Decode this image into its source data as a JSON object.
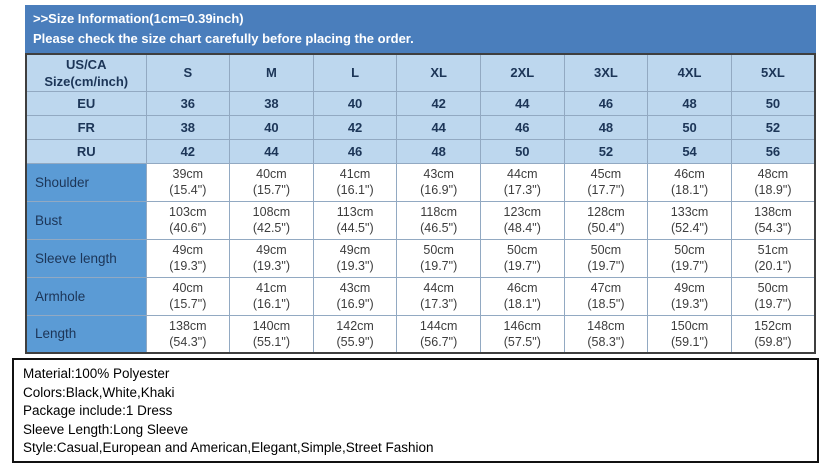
{
  "banner": {
    "title": ">>Size Information(1cm=0.39inch)",
    "subtitle": "Please check the size chart carefully before placing the order."
  },
  "size_chart": {
    "corner_header_lines": [
      "US/CA",
      "Size(cm/inch)"
    ],
    "size_columns": [
      "S",
      "M",
      "L",
      "XL",
      "2XL",
      "3XL",
      "4XL",
      "5XL"
    ],
    "region_rows": [
      {
        "label": "EU",
        "values": [
          "36",
          "38",
          "40",
          "42",
          "44",
          "46",
          "48",
          "50"
        ]
      },
      {
        "label": "FR",
        "values": [
          "38",
          "40",
          "42",
          "44",
          "46",
          "48",
          "50",
          "52"
        ]
      },
      {
        "label": "RU",
        "values": [
          "42",
          "44",
          "46",
          "48",
          "50",
          "52",
          "54",
          "56"
        ]
      }
    ],
    "measurement_rows": [
      {
        "label": "Shoulder",
        "cells": [
          [
            "39cm",
            "(15.4\")"
          ],
          [
            "40cm",
            "(15.7\")"
          ],
          [
            "41cm",
            "(16.1\")"
          ],
          [
            "43cm",
            "(16.9\")"
          ],
          [
            "44cm",
            "(17.3\")"
          ],
          [
            "45cm",
            "(17.7\")"
          ],
          [
            "46cm",
            "(18.1\")"
          ],
          [
            "48cm",
            "(18.9\")"
          ]
        ]
      },
      {
        "label": "Bust",
        "cells": [
          [
            "103cm",
            "(40.6\")"
          ],
          [
            "108cm",
            "(42.5\")"
          ],
          [
            "113cm",
            "(44.5\")"
          ],
          [
            "118cm",
            "(46.5\")"
          ],
          [
            "123cm",
            "(48.4\")"
          ],
          [
            "128cm",
            "(50.4\")"
          ],
          [
            "133cm",
            "(52.4\")"
          ],
          [
            "138cm",
            "(54.3\")"
          ]
        ]
      },
      {
        "label": "Sleeve length",
        "cells": [
          [
            "49cm",
            "(19.3\")"
          ],
          [
            "49cm",
            "(19.3\")"
          ],
          [
            "49cm",
            "(19.3\")"
          ],
          [
            "50cm",
            "(19.7\")"
          ],
          [
            "50cm",
            "(19.7\")"
          ],
          [
            "50cm",
            "(19.7\")"
          ],
          [
            "50cm",
            "(19.7\")"
          ],
          [
            "51cm",
            "(20.1\")"
          ]
        ]
      },
      {
        "label": "Armhole",
        "cells": [
          [
            "40cm",
            "(15.7\")"
          ],
          [
            "41cm",
            "(16.1\")"
          ],
          [
            "43cm",
            "(16.9\")"
          ],
          [
            "44cm",
            "(17.3\")"
          ],
          [
            "46cm",
            "(18.1\")"
          ],
          [
            "47cm",
            "(18.5\")"
          ],
          [
            "49cm",
            "(19.3\")"
          ],
          [
            "50cm",
            "(19.7\")"
          ]
        ]
      },
      {
        "label": "Length",
        "cells": [
          [
            "138cm",
            "(54.3\")"
          ],
          [
            "140cm",
            "(55.1\")"
          ],
          [
            "142cm",
            "(55.9\")"
          ],
          [
            "144cm",
            "(56.7\")"
          ],
          [
            "146cm",
            "(57.5\")"
          ],
          [
            "148cm",
            "(58.3\")"
          ],
          [
            "150cm",
            "(59.1\")"
          ],
          [
            "152cm",
            "(59.8\")"
          ]
        ]
      }
    ]
  },
  "product_info": {
    "lines": [
      "Material:100% Polyester",
      "Colors:Black,White,Khaki",
      "Package include:1 Dress",
      "Sleeve Length:Long Sleeve",
      "Style:Casual,European and American,Elegant,Simple,Street Fashion"
    ]
  },
  "colors": {
    "banner_bg": "#4a7ebc",
    "header_bg": "#bdd7ee",
    "label_bg": "#5b9bd5",
    "header_text": "#1c3557",
    "cell_text": "#3d3d3d",
    "grid_line": "#92a9c2"
  }
}
